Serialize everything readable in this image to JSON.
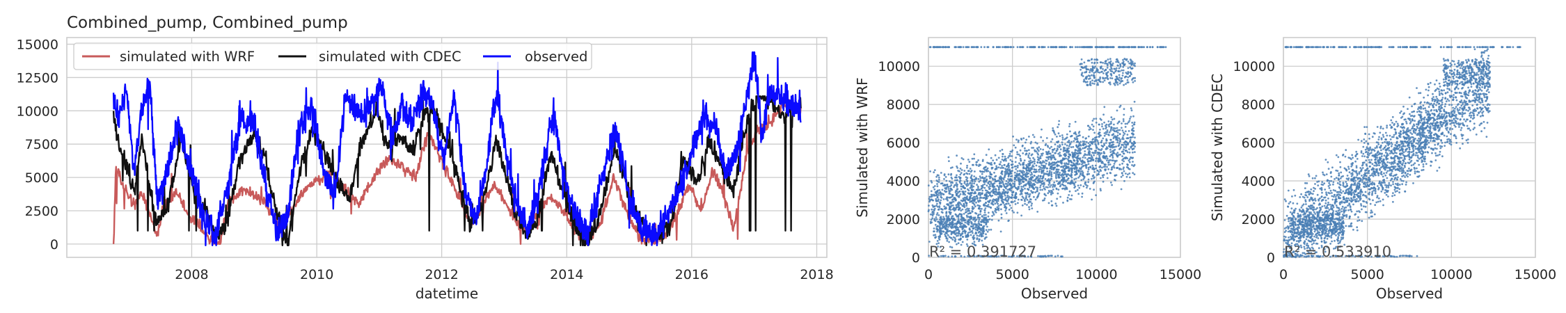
{
  "chart_data": [
    {
      "type": "line",
      "title": "Combined_pump, Combined_pump",
      "xlabel": "datetime",
      "ylabel": "",
      "xlim": [
        "2006-01-01",
        "2018-03-01"
      ],
      "ylim": [
        -1000,
        15500
      ],
      "grid": true,
      "legend": {
        "placement": "top-left",
        "columns": 3
      },
      "x_ticks": [
        "2008",
        "2010",
        "2012",
        "2014",
        "2016",
        "2018"
      ],
      "y_ticks": [
        "0",
        "2500",
        "5000",
        "7500",
        "10000",
        "12500",
        "15000"
      ],
      "date_start": "2006-10-01",
      "date_end": "2017-09-30",
      "series": [
        {
          "name": "simulated with WRF",
          "color": "#c85a5a",
          "keypoints": [
            [
              "2006-10-01",
              0
            ],
            [
              "2006-10-15",
              6000
            ],
            [
              "2006-12-01",
              4200
            ],
            [
              "2007-02-01",
              2800
            ],
            [
              "2007-03-15",
              3800
            ],
            [
              "2007-05-01",
              2200
            ],
            [
              "2007-06-15",
              500
            ],
            [
              "2007-07-15",
              2500
            ],
            [
              "2007-10-01",
              4000
            ],
            [
              "2007-12-15",
              2200
            ],
            [
              "2008-02-15",
              1500
            ],
            [
              "2008-04-15",
              200
            ],
            [
              "2008-06-15",
              0
            ],
            [
              "2008-08-01",
              3000
            ],
            [
              "2008-11-01",
              4200
            ],
            [
              "2009-01-15",
              3500
            ],
            [
              "2009-03-15",
              3000
            ],
            [
              "2009-06-01",
              1000
            ],
            [
              "2009-08-01",
              2500
            ],
            [
              "2009-11-01",
              4200
            ],
            [
              "2010-01-15",
              4800
            ],
            [
              "2010-04-01",
              5500
            ],
            [
              "2010-06-15",
              4000
            ],
            [
              "2010-09-01",
              3000
            ],
            [
              "2010-12-01",
              5000
            ],
            [
              "2011-03-01",
              6500
            ],
            [
              "2011-05-15",
              5800
            ],
            [
              "2011-08-01",
              5000
            ],
            [
              "2011-10-15",
              8500
            ],
            [
              "2011-12-15",
              6800
            ],
            [
              "2012-02-15",
              5000
            ],
            [
              "2012-04-15",
              3500
            ],
            [
              "2012-06-15",
              1500
            ],
            [
              "2012-08-15",
              2500
            ],
            [
              "2012-11-01",
              4500
            ],
            [
              "2013-01-15",
              3000
            ],
            [
              "2013-03-15",
              1500
            ],
            [
              "2013-05-15",
              1000
            ],
            [
              "2013-07-15",
              2500
            ],
            [
              "2013-10-01",
              3500
            ],
            [
              "2013-12-15",
              2500
            ],
            [
              "2014-02-15",
              1000
            ],
            [
              "2014-05-01",
              300
            ],
            [
              "2014-07-15",
              1500
            ],
            [
              "2014-10-01",
              5000
            ],
            [
              "2014-12-15",
              2500
            ],
            [
              "2015-03-01",
              500
            ],
            [
              "2015-06-01",
              200
            ],
            [
              "2015-08-15",
              800
            ],
            [
              "2015-10-15",
              2500
            ],
            [
              "2015-12-15",
              4500
            ],
            [
              "2016-03-01",
              2500
            ],
            [
              "2016-05-01",
              5500
            ],
            [
              "2016-07-01",
              4000
            ],
            [
              "2016-09-01",
              1000
            ],
            [
              "2016-11-15",
              6500
            ],
            [
              "2017-01-15",
              8500
            ],
            [
              "2017-04-01",
              9000
            ],
            [
              "2017-06-15",
              10500
            ],
            [
              "2017-09-30",
              10000
            ]
          ]
        },
        {
          "name": "simulated with CDEC",
          "color": "#111111",
          "keypoints": [
            [
              "2006-10-01",
              9500
            ],
            [
              "2006-11-01",
              7500
            ],
            [
              "2006-12-15",
              6000
            ],
            [
              "2007-02-01",
              4000
            ],
            [
              "2007-03-15",
              8000
            ],
            [
              "2007-05-01",
              4000
            ],
            [
              "2007-06-15",
              1500
            ],
            [
              "2007-08-15",
              3000
            ],
            [
              "2007-11-01",
              8000
            ],
            [
              "2008-01-15",
              4000
            ],
            [
              "2008-03-15",
              2500
            ],
            [
              "2008-05-15",
              800
            ],
            [
              "2008-07-15",
              1000
            ],
            [
              "2008-10-01",
              6000
            ],
            [
              "2009-01-01",
              8500
            ],
            [
              "2009-03-15",
              6000
            ],
            [
              "2009-05-15",
              2000
            ],
            [
              "2009-07-15",
              0
            ],
            [
              "2009-09-15",
              5000
            ],
            [
              "2009-12-01",
              8500
            ],
            [
              "2010-02-15",
              7000
            ],
            [
              "2010-04-15",
              5000
            ],
            [
              "2010-07-15",
              3500
            ],
            [
              "2010-09-15",
              7500
            ],
            [
              "2010-12-15",
              10000
            ],
            [
              "2011-02-15",
              7500
            ],
            [
              "2011-05-15",
              8000
            ],
            [
              "2011-07-15",
              7000
            ],
            [
              "2011-09-15",
              9500
            ],
            [
              "2011-11-15",
              10000
            ],
            [
              "2012-02-01",
              7500
            ],
            [
              "2012-04-15",
              4500
            ],
            [
              "2012-06-15",
              1500
            ],
            [
              "2012-09-01",
              3000
            ],
            [
              "2012-11-15",
              8000
            ],
            [
              "2013-01-15",
              5000
            ],
            [
              "2013-03-15",
              2000
            ],
            [
              "2013-05-15",
              500
            ],
            [
              "2013-07-15",
              2000
            ],
            [
              "2013-10-01",
              7000
            ],
            [
              "2013-12-15",
              3500
            ],
            [
              "2014-02-15",
              1500
            ],
            [
              "2014-04-15",
              0
            ],
            [
              "2014-07-01",
              1500
            ],
            [
              "2014-10-15",
              7500
            ],
            [
              "2015-01-01",
              3500
            ],
            [
              "2015-03-15",
              1500
            ],
            [
              "2015-06-01",
              500
            ],
            [
              "2015-09-01",
              1500
            ],
            [
              "2015-11-15",
              6500
            ],
            [
              "2016-02-01",
              4500
            ],
            [
              "2016-04-15",
              8000
            ],
            [
              "2016-06-15",
              6000
            ],
            [
              "2016-09-01",
              4000
            ],
            [
              "2016-11-15",
              9000
            ],
            [
              "2017-01-15",
              11000
            ],
            [
              "2017-03-15",
              11000
            ],
            [
              "2017-06-01",
              9500
            ],
            [
              "2017-09-30",
              10500
            ]
          ]
        },
        {
          "name": "observed",
          "color": "#0a0aff",
          "keypoints": [
            [
              "2006-10-01",
              11000
            ],
            [
              "2006-11-01",
              9500
            ],
            [
              "2006-12-15",
              11500
            ],
            [
              "2007-02-01",
              5000
            ],
            [
              "2007-03-15",
              10500
            ],
            [
              "2007-05-01",
              12000
            ],
            [
              "2007-06-15",
              3000
            ],
            [
              "2007-08-15",
              5500
            ],
            [
              "2007-10-15",
              9000
            ],
            [
              "2008-01-01",
              5000
            ],
            [
              "2008-03-15",
              2000
            ],
            [
              "2008-05-15",
              500
            ],
            [
              "2008-07-15",
              3500
            ],
            [
              "2008-10-15",
              9500
            ],
            [
              "2009-01-01",
              9000
            ],
            [
              "2009-03-15",
              4000
            ],
            [
              "2009-05-15",
              1000
            ],
            [
              "2009-07-15",
              2000
            ],
            [
              "2009-09-15",
              8500
            ],
            [
              "2009-12-01",
              10500
            ],
            [
              "2010-02-15",
              5500
            ],
            [
              "2010-04-15",
              3500
            ],
            [
              "2010-06-15",
              11000
            ],
            [
              "2010-09-15",
              9500
            ],
            [
              "2010-11-15",
              10500
            ],
            [
              "2011-01-15",
              12000
            ],
            [
              "2011-03-15",
              8000
            ],
            [
              "2011-05-15",
              10500
            ],
            [
              "2011-07-15",
              9000
            ],
            [
              "2011-09-15",
              11500
            ],
            [
              "2011-11-15",
              10000
            ],
            [
              "2012-01-15",
              6000
            ],
            [
              "2012-03-15",
              11500
            ],
            [
              "2012-05-15",
              4000
            ],
            [
              "2012-07-15",
              2000
            ],
            [
              "2012-09-15",
              5500
            ],
            [
              "2012-11-15",
              11500
            ],
            [
              "2013-01-15",
              6500
            ],
            [
              "2013-03-15",
              3000
            ],
            [
              "2013-05-15",
              1000
            ],
            [
              "2013-07-15",
              3500
            ],
            [
              "2013-10-15",
              10000
            ],
            [
              "2013-12-15",
              5000
            ],
            [
              "2014-03-01",
              2000
            ],
            [
              "2014-05-01",
              600
            ],
            [
              "2014-07-15",
              4500
            ],
            [
              "2014-10-15",
              8500
            ],
            [
              "2015-01-15",
              3000
            ],
            [
              "2015-03-15",
              1000
            ],
            [
              "2015-06-15",
              800
            ],
            [
              "2015-09-15",
              3000
            ],
            [
              "2015-11-15",
              5000
            ],
            [
              "2016-01-15",
              7500
            ],
            [
              "2016-03-15",
              9500
            ],
            [
              "2016-05-15",
              9000
            ],
            [
              "2016-07-15",
              5500
            ],
            [
              "2016-09-15",
              6500
            ],
            [
              "2016-11-15",
              11000
            ],
            [
              "2017-01-01",
              14200
            ],
            [
              "2017-02-15",
              8000
            ],
            [
              "2017-04-01",
              11500
            ],
            [
              "2017-06-15",
              11000
            ],
            [
              "2017-09-30",
              10000
            ]
          ]
        }
      ]
    },
    {
      "type": "scatter",
      "title": "",
      "xlabel": "Observed",
      "ylabel": "Simulated with WRF",
      "xlim": [
        0,
        15000
      ],
      "ylim": [
        0,
        11500
      ],
      "grid": true,
      "color": "#4a7fb5",
      "x_ticks": [
        "0",
        "5000",
        "10000",
        "15000"
      ],
      "y_ticks": [
        "0",
        "2000",
        "4000",
        "6000",
        "8000",
        "10000"
      ],
      "annotation": "R² = 0.391727",
      "r2": 0.391727
    },
    {
      "type": "scatter",
      "title": "",
      "xlabel": "Observed",
      "ylabel": "Simulated with CDEC",
      "xlim": [
        0,
        15000
      ],
      "ylim": [
        0,
        11500
      ],
      "grid": true,
      "color": "#4a7fb5",
      "x_ticks": [
        "0",
        "5000",
        "10000",
        "15000"
      ],
      "y_ticks": [
        "0",
        "2000",
        "4000",
        "6000",
        "8000",
        "10000"
      ],
      "annotation": "R² = 0.533910",
      "r2": 0.53391
    }
  ]
}
